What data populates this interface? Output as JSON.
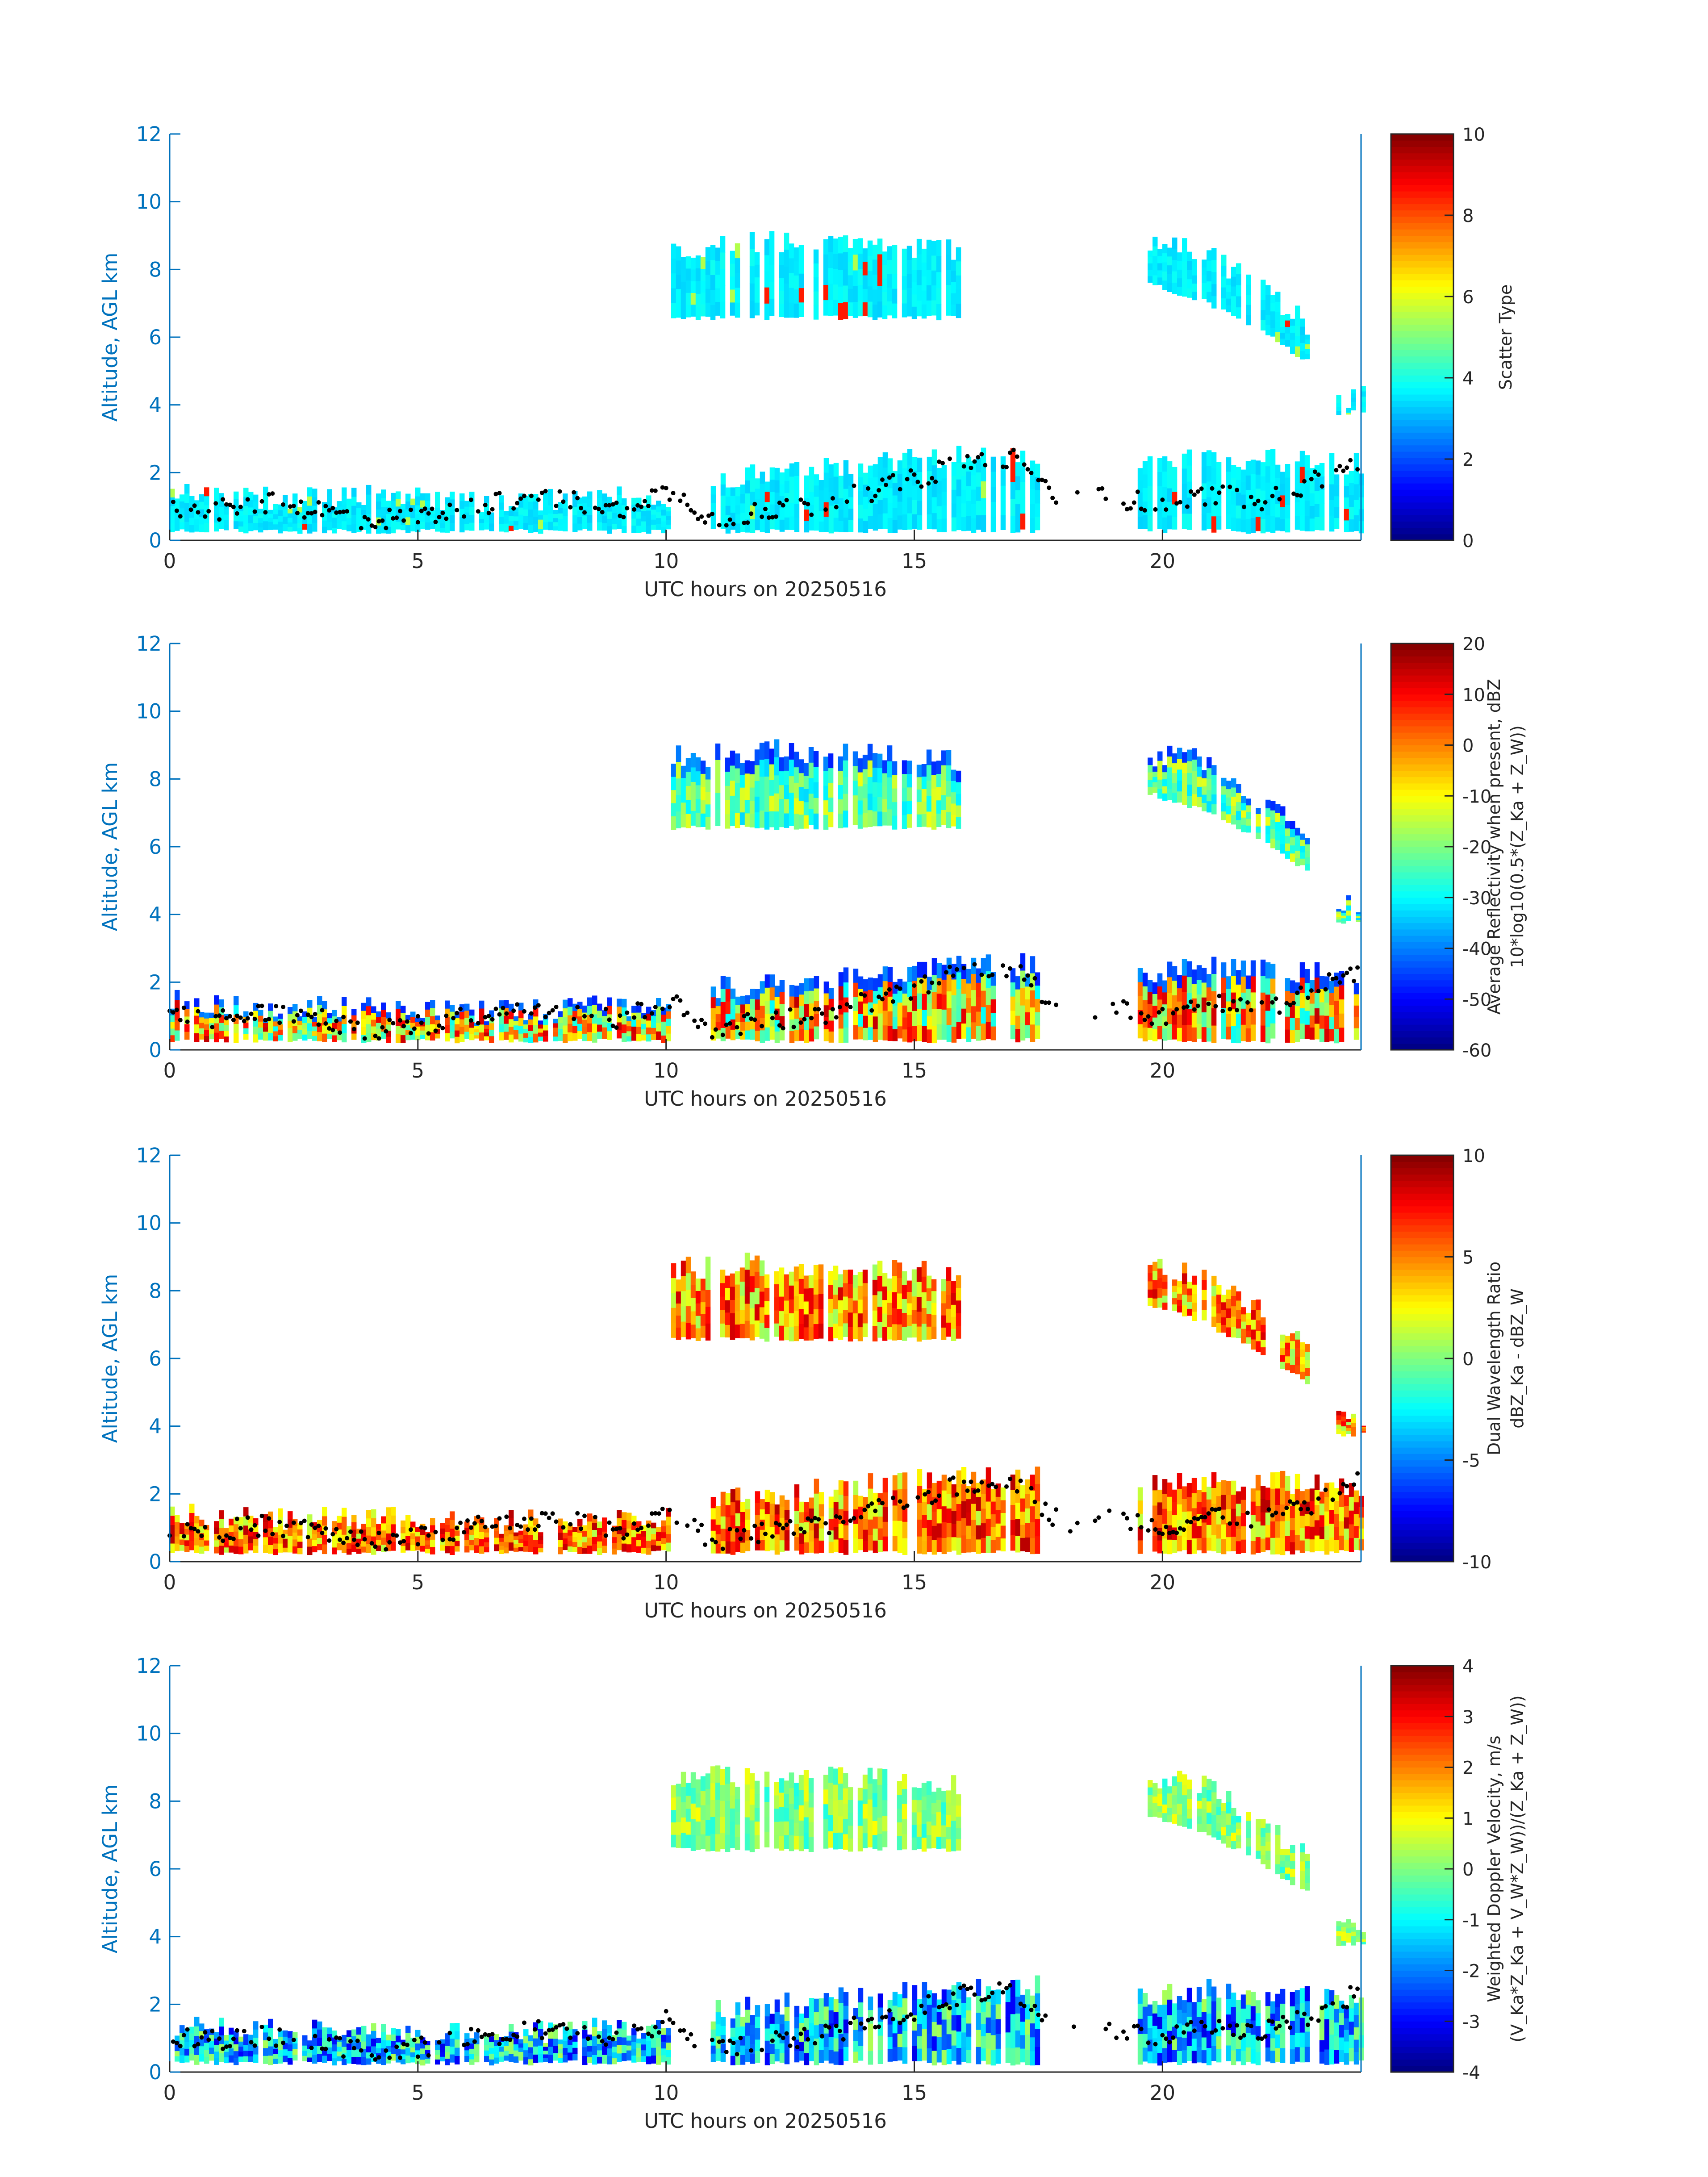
{
  "figure": {
    "colors": {
      "axis": "#0072BD",
      "text": "#262626",
      "background": "#ffffff",
      "marker": "#000000"
    },
    "colormap": "jet"
  },
  "chart_data": [
    {
      "type": "heatmap",
      "title": "",
      "xlabel": "UTC hours on 20250516",
      "ylabel": "Altitude, AGL km",
      "xlim": [
        0,
        24
      ],
      "ylim": [
        0,
        12
      ],
      "xticks": [
        "0",
        "5",
        "10",
        "15",
        "20"
      ],
      "yticks": [
        "0",
        "2",
        "4",
        "6",
        "8",
        "10",
        "12"
      ],
      "colorbar": {
        "label_lines": [
          "Scatter Type"
        ],
        "clim": [
          0,
          10
        ],
        "ticks": [
          "0",
          "2",
          "4",
          "6",
          "8",
          "10"
        ]
      },
      "field": "scatter_type",
      "cloud_layers": [
        {
          "x": [
            0,
            10
          ],
          "base": 0.2,
          "top": [
            1.5,
            1.3,
            1.4,
            1.2,
            1.3,
            1.4
          ]
        },
        {
          "x": [
            10.9,
            17.5
          ],
          "base": 0.2,
          "top": [
            1.9,
            2.2,
            2.5,
            2.6
          ]
        },
        {
          "x": [
            10.1,
            15.9
          ],
          "base": 6.5,
          "top": [
            8.7,
            8.9,
            8.8,
            8.6
          ]
        },
        {
          "x": [
            19.5,
            24
          ],
          "base": 0.2,
          "top": [
            2.3,
            2.5,
            2.4,
            2.3
          ]
        },
        {
          "x": [
            19.7,
            22.9
          ],
          "base": [
            7.5,
            7.0,
            6.2,
            5.2
          ],
          "top": [
            8.8,
            8.6,
            7.6,
            6.4
          ]
        },
        {
          "x": [
            23.5,
            24
          ],
          "base": 3.7,
          "top": 4.3
        }
      ],
      "cloud_base_km": [
        {
          "x": 0,
          "y": 1.0
        },
        {
          "x": 1,
          "y": 0.9
        },
        {
          "x": 2,
          "y": 1.1
        },
        {
          "x": 3,
          "y": 0.9
        },
        {
          "x": 4,
          "y": 0.6
        },
        {
          "x": 5,
          "y": 0.7
        },
        {
          "x": 6,
          "y": 1.0
        },
        {
          "x": 7,
          "y": 1.2
        },
        {
          "x": 8,
          "y": 1.2
        },
        {
          "x": 9,
          "y": 0.9
        },
        {
          "x": 10,
          "y": 1.5
        },
        {
          "x": 11,
          "y": 0.6
        },
        {
          "x": 12,
          "y": 0.9
        },
        {
          "x": 13,
          "y": 1.0
        },
        {
          "x": 14,
          "y": 1.4
        },
        {
          "x": 15,
          "y": 1.8
        },
        {
          "x": 16,
          "y": 2.3
        },
        {
          "x": 17,
          "y": 2.4
        },
        {
          "x": 18,
          "y": 1.1
        },
        {
          "x": 19,
          "y": 1.3
        },
        {
          "x": 20,
          "y": 1.0
        },
        {
          "x": 21,
          "y": 1.4
        },
        {
          "x": 22,
          "y": 1.2
        },
        {
          "x": 23,
          "y": 1.7
        },
        {
          "x": 24,
          "y": 2.4
        }
      ]
    },
    {
      "type": "heatmap",
      "title": "",
      "xlabel": "UTC hours on 20250516",
      "ylabel": "Altitude, AGL km",
      "xlim": [
        0,
        24
      ],
      "ylim": [
        0,
        12
      ],
      "xticks": [
        "0",
        "5",
        "10",
        "15",
        "20"
      ],
      "yticks": [
        "0",
        "2",
        "4",
        "6",
        "8",
        "10",
        "12"
      ],
      "colorbar": {
        "label_lines": [
          "Average Reflectivity when present, dBZ",
          "10*log10(0.5*(Z_Ka + Z_W))"
        ],
        "clim": [
          -60,
          20
        ],
        "ticks": [
          "-60",
          "-50",
          "-40",
          "-30",
          "-20",
          "-10",
          "0",
          "10",
          "20"
        ]
      },
      "field": "reflectivity_dbz",
      "cloud_layers": [
        {
          "x": [
            0,
            10
          ],
          "base": 0.2,
          "top": [
            1.5,
            1.3,
            1.4,
            1.2,
            1.3,
            1.4
          ]
        },
        {
          "x": [
            10.9,
            17.5
          ],
          "base": 0.2,
          "top": [
            1.9,
            2.2,
            2.5,
            2.6
          ]
        },
        {
          "x": [
            10.1,
            15.9
          ],
          "base": 6.5,
          "top": [
            8.7,
            8.9,
            8.8,
            8.6
          ]
        },
        {
          "x": [
            19.5,
            24
          ],
          "base": 0.2,
          "top": [
            2.3,
            2.5,
            2.4,
            2.3
          ]
        },
        {
          "x": [
            19.7,
            22.9
          ],
          "base": [
            7.5,
            7.0,
            6.2,
            5.2
          ],
          "top": [
            8.8,
            8.6,
            7.6,
            6.4
          ]
        },
        {
          "x": [
            23.5,
            24
          ],
          "base": 3.7,
          "top": 4.3
        }
      ],
      "cloud_base_km": [
        {
          "x": 0,
          "y": 1.0
        },
        {
          "x": 1,
          "y": 0.9
        },
        {
          "x": 2,
          "y": 1.1
        },
        {
          "x": 3,
          "y": 0.9
        },
        {
          "x": 4,
          "y": 0.6
        },
        {
          "x": 5,
          "y": 0.7
        },
        {
          "x": 6,
          "y": 1.0
        },
        {
          "x": 7,
          "y": 1.2
        },
        {
          "x": 8,
          "y": 1.2
        },
        {
          "x": 9,
          "y": 0.9
        },
        {
          "x": 10,
          "y": 1.5
        },
        {
          "x": 11,
          "y": 0.6
        },
        {
          "x": 12,
          "y": 0.9
        },
        {
          "x": 13,
          "y": 1.0
        },
        {
          "x": 14,
          "y": 1.4
        },
        {
          "x": 15,
          "y": 1.8
        },
        {
          "x": 16,
          "y": 2.3
        },
        {
          "x": 17,
          "y": 2.4
        },
        {
          "x": 18,
          "y": 1.1
        },
        {
          "x": 19,
          "y": 1.3
        },
        {
          "x": 20,
          "y": 1.0
        },
        {
          "x": 21,
          "y": 1.4
        },
        {
          "x": 22,
          "y": 1.2
        },
        {
          "x": 23,
          "y": 1.7
        },
        {
          "x": 24,
          "y": 2.4
        }
      ]
    },
    {
      "type": "heatmap",
      "title": "",
      "xlabel": "UTC hours on 20250516",
      "ylabel": "Altitude, AGL km",
      "xlim": [
        0,
        24
      ],
      "ylim": [
        0,
        12
      ],
      "xticks": [
        "0",
        "5",
        "10",
        "15",
        "20"
      ],
      "yticks": [
        "0",
        "2",
        "4",
        "6",
        "8",
        "10",
        "12"
      ],
      "colorbar": {
        "label_lines": [
          "Dual Wavelength Ratio",
          "dBZ_Ka - dBZ_W"
        ],
        "clim": [
          -10,
          10
        ],
        "ticks": [
          "-10",
          "-5",
          "0",
          "5",
          "10"
        ]
      },
      "field": "dual_wavelength_ratio",
      "cloud_layers": [
        {
          "x": [
            0,
            10
          ],
          "base": 0.2,
          "top": [
            1.5,
            1.3,
            1.4,
            1.2,
            1.3,
            1.4
          ]
        },
        {
          "x": [
            10.9,
            17.5
          ],
          "base": 0.2,
          "top": [
            1.9,
            2.2,
            2.5,
            2.6
          ]
        },
        {
          "x": [
            10.1,
            15.9
          ],
          "base": 6.5,
          "top": [
            8.7,
            8.9,
            8.8,
            8.6
          ]
        },
        {
          "x": [
            19.5,
            24
          ],
          "base": 0.2,
          "top": [
            2.3,
            2.5,
            2.4,
            2.3
          ]
        },
        {
          "x": [
            19.7,
            22.9
          ],
          "base": [
            7.5,
            7.0,
            6.2,
            5.2
          ],
          "top": [
            8.8,
            8.6,
            7.6,
            6.4
          ]
        },
        {
          "x": [
            23.5,
            24
          ],
          "base": 3.7,
          "top": 4.3
        }
      ],
      "cloud_base_km": [
        {
          "x": 0,
          "y": 1.0
        },
        {
          "x": 1,
          "y": 0.9
        },
        {
          "x": 2,
          "y": 1.1
        },
        {
          "x": 3,
          "y": 0.9
        },
        {
          "x": 4,
          "y": 0.6
        },
        {
          "x": 5,
          "y": 0.7
        },
        {
          "x": 6,
          "y": 1.0
        },
        {
          "x": 7,
          "y": 1.2
        },
        {
          "x": 8,
          "y": 1.2
        },
        {
          "x": 9,
          "y": 0.9
        },
        {
          "x": 10,
          "y": 1.5
        },
        {
          "x": 11,
          "y": 0.6
        },
        {
          "x": 12,
          "y": 0.9
        },
        {
          "x": 13,
          "y": 1.0
        },
        {
          "x": 14,
          "y": 1.4
        },
        {
          "x": 15,
          "y": 1.8
        },
        {
          "x": 16,
          "y": 2.3
        },
        {
          "x": 17,
          "y": 2.4
        },
        {
          "x": 18,
          "y": 1.1
        },
        {
          "x": 19,
          "y": 1.3
        },
        {
          "x": 20,
          "y": 1.0
        },
        {
          "x": 21,
          "y": 1.4
        },
        {
          "x": 22,
          "y": 1.2
        },
        {
          "x": 23,
          "y": 1.7
        },
        {
          "x": 24,
          "y": 2.4
        }
      ]
    },
    {
      "type": "heatmap",
      "title": "",
      "xlabel": "UTC hours on 20250516",
      "ylabel": "Altitude, AGL km",
      "xlim": [
        0,
        24
      ],
      "ylim": [
        0,
        12
      ],
      "xticks": [
        "0",
        "5",
        "10",
        "15",
        "20"
      ],
      "yticks": [
        "0",
        "2",
        "4",
        "6",
        "8",
        "10",
        "12"
      ],
      "colorbar": {
        "label_lines": [
          "Weighted Doppler Velocity, m/s",
          "(V_Ka*Z_Ka + V_W*Z_W))/(Z_Ka + Z_W))"
        ],
        "clim": [
          -4,
          4
        ],
        "ticks": [
          "-4",
          "-3",
          "-2",
          "-1",
          "0",
          "1",
          "2",
          "3",
          "4"
        ]
      },
      "field": "doppler_velocity",
      "cloud_layers": [
        {
          "x": [
            0,
            10
          ],
          "base": 0.2,
          "top": [
            1.5,
            1.3,
            1.4,
            1.2,
            1.3,
            1.4
          ]
        },
        {
          "x": [
            10.9,
            17.5
          ],
          "base": 0.2,
          "top": [
            1.9,
            2.2,
            2.5,
            2.6
          ]
        },
        {
          "x": [
            10.1,
            15.9
          ],
          "base": 6.5,
          "top": [
            8.7,
            8.9,
            8.8,
            8.6
          ]
        },
        {
          "x": [
            19.5,
            24
          ],
          "base": 0.2,
          "top": [
            2.3,
            2.5,
            2.4,
            2.3
          ]
        },
        {
          "x": [
            19.7,
            22.9
          ],
          "base": [
            7.5,
            7.0,
            6.2,
            5.2
          ],
          "top": [
            8.8,
            8.6,
            7.6,
            6.4
          ]
        },
        {
          "x": [
            23.5,
            24
          ],
          "base": 3.7,
          "top": 4.3
        }
      ],
      "cloud_base_km": [
        {
          "x": 0,
          "y": 1.0
        },
        {
          "x": 1,
          "y": 0.9
        },
        {
          "x": 2,
          "y": 1.1
        },
        {
          "x": 3,
          "y": 0.9
        },
        {
          "x": 4,
          "y": 0.6
        },
        {
          "x": 5,
          "y": 0.7
        },
        {
          "x": 6,
          "y": 1.0
        },
        {
          "x": 7,
          "y": 1.2
        },
        {
          "x": 8,
          "y": 1.2
        },
        {
          "x": 9,
          "y": 0.9
        },
        {
          "x": 10,
          "y": 1.5
        },
        {
          "x": 11,
          "y": 0.6
        },
        {
          "x": 12,
          "y": 0.9
        },
        {
          "x": 13,
          "y": 1.0
        },
        {
          "x": 14,
          "y": 1.4
        },
        {
          "x": 15,
          "y": 1.8
        },
        {
          "x": 16,
          "y": 2.3
        },
        {
          "x": 17,
          "y": 2.4
        },
        {
          "x": 18,
          "y": 1.1
        },
        {
          "x": 19,
          "y": 1.3
        },
        {
          "x": 20,
          "y": 1.0
        },
        {
          "x": 21,
          "y": 1.4
        },
        {
          "x": 22,
          "y": 1.2
        },
        {
          "x": 23,
          "y": 1.7
        },
        {
          "x": 24,
          "y": 2.4
        }
      ]
    }
  ]
}
